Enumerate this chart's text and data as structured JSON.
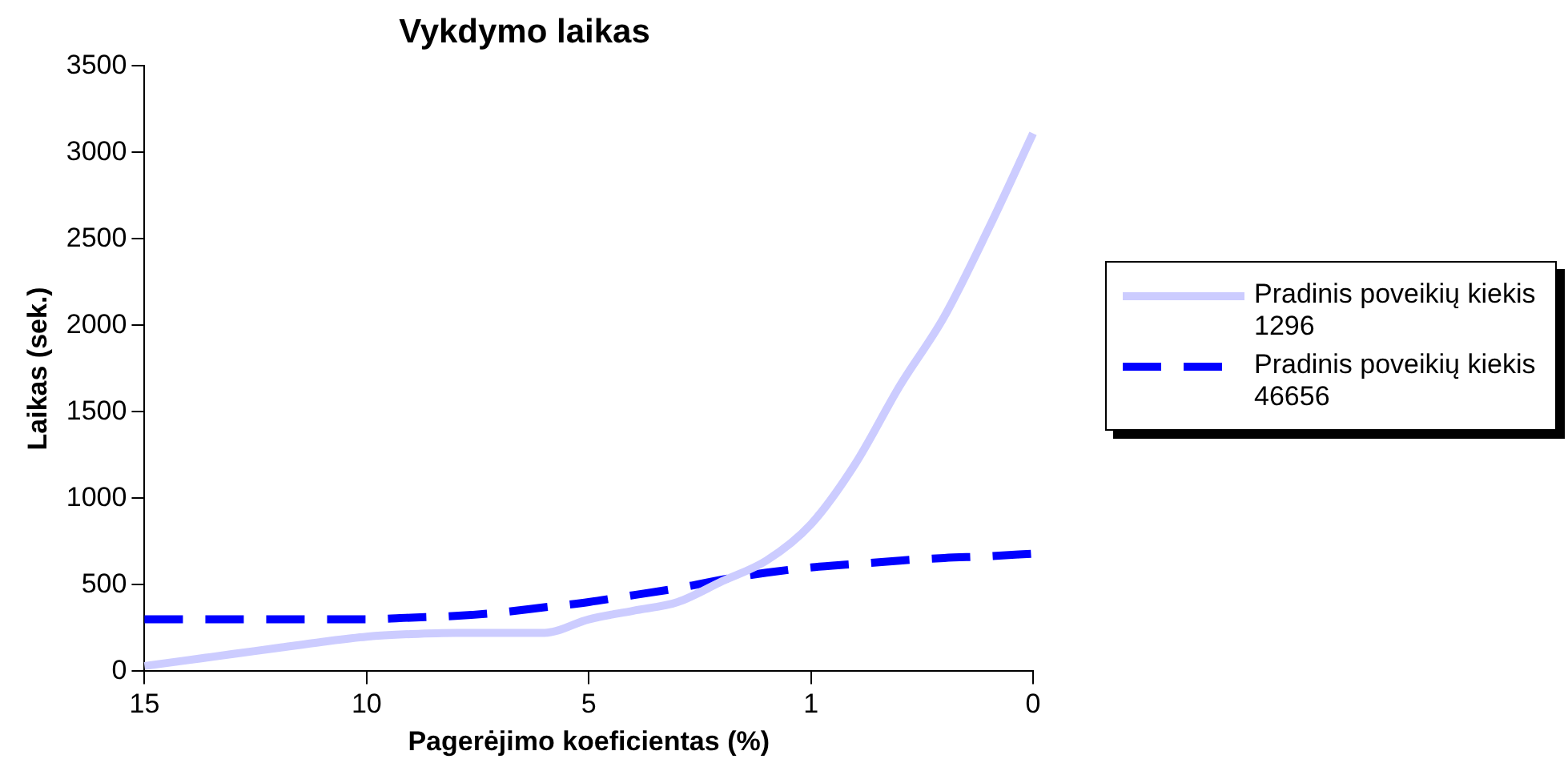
{
  "chart_data": {
    "type": "line",
    "title": "Vykdymo laikas",
    "xlabel": "Pagerėjimo koeficientas (%)",
    "ylabel": "Laikas (sek.)",
    "categories": [
      "15",
      null,
      null,
      null,
      null,
      "10",
      null,
      null,
      null,
      null,
      "5",
      null,
      null,
      null,
      null,
      "1",
      null,
      null,
      null,
      null,
      "0"
    ],
    "series": [
      {
        "name": "Pradinis poveikių kiekis 1296",
        "color": "#ccccff",
        "line_style": "solid",
        "values": [
          30,
          65,
          100,
          135,
          170,
          200,
          215,
          222,
          222,
          222,
          300,
          350,
          400,
          520,
          640,
          850,
          1200,
          1650,
          2050,
          2560,
          3110
        ]
      },
      {
        "name": "Pradinis poveikių kiekis 46656",
        "color": "#0000ff",
        "line_style": "dashed",
        "values": [
          300,
          300,
          300,
          300,
          300,
          300,
          310,
          320,
          340,
          370,
          400,
          440,
          480,
          530,
          570,
          600,
          620,
          640,
          655,
          665,
          680
        ]
      }
    ],
    "ylim": [
      0,
      3500
    ],
    "yticks": [
      0,
      500,
      1000,
      1500,
      2000,
      2500,
      3000,
      3500
    ],
    "grid": false,
    "legend": "right",
    "marker": "none"
  }
}
